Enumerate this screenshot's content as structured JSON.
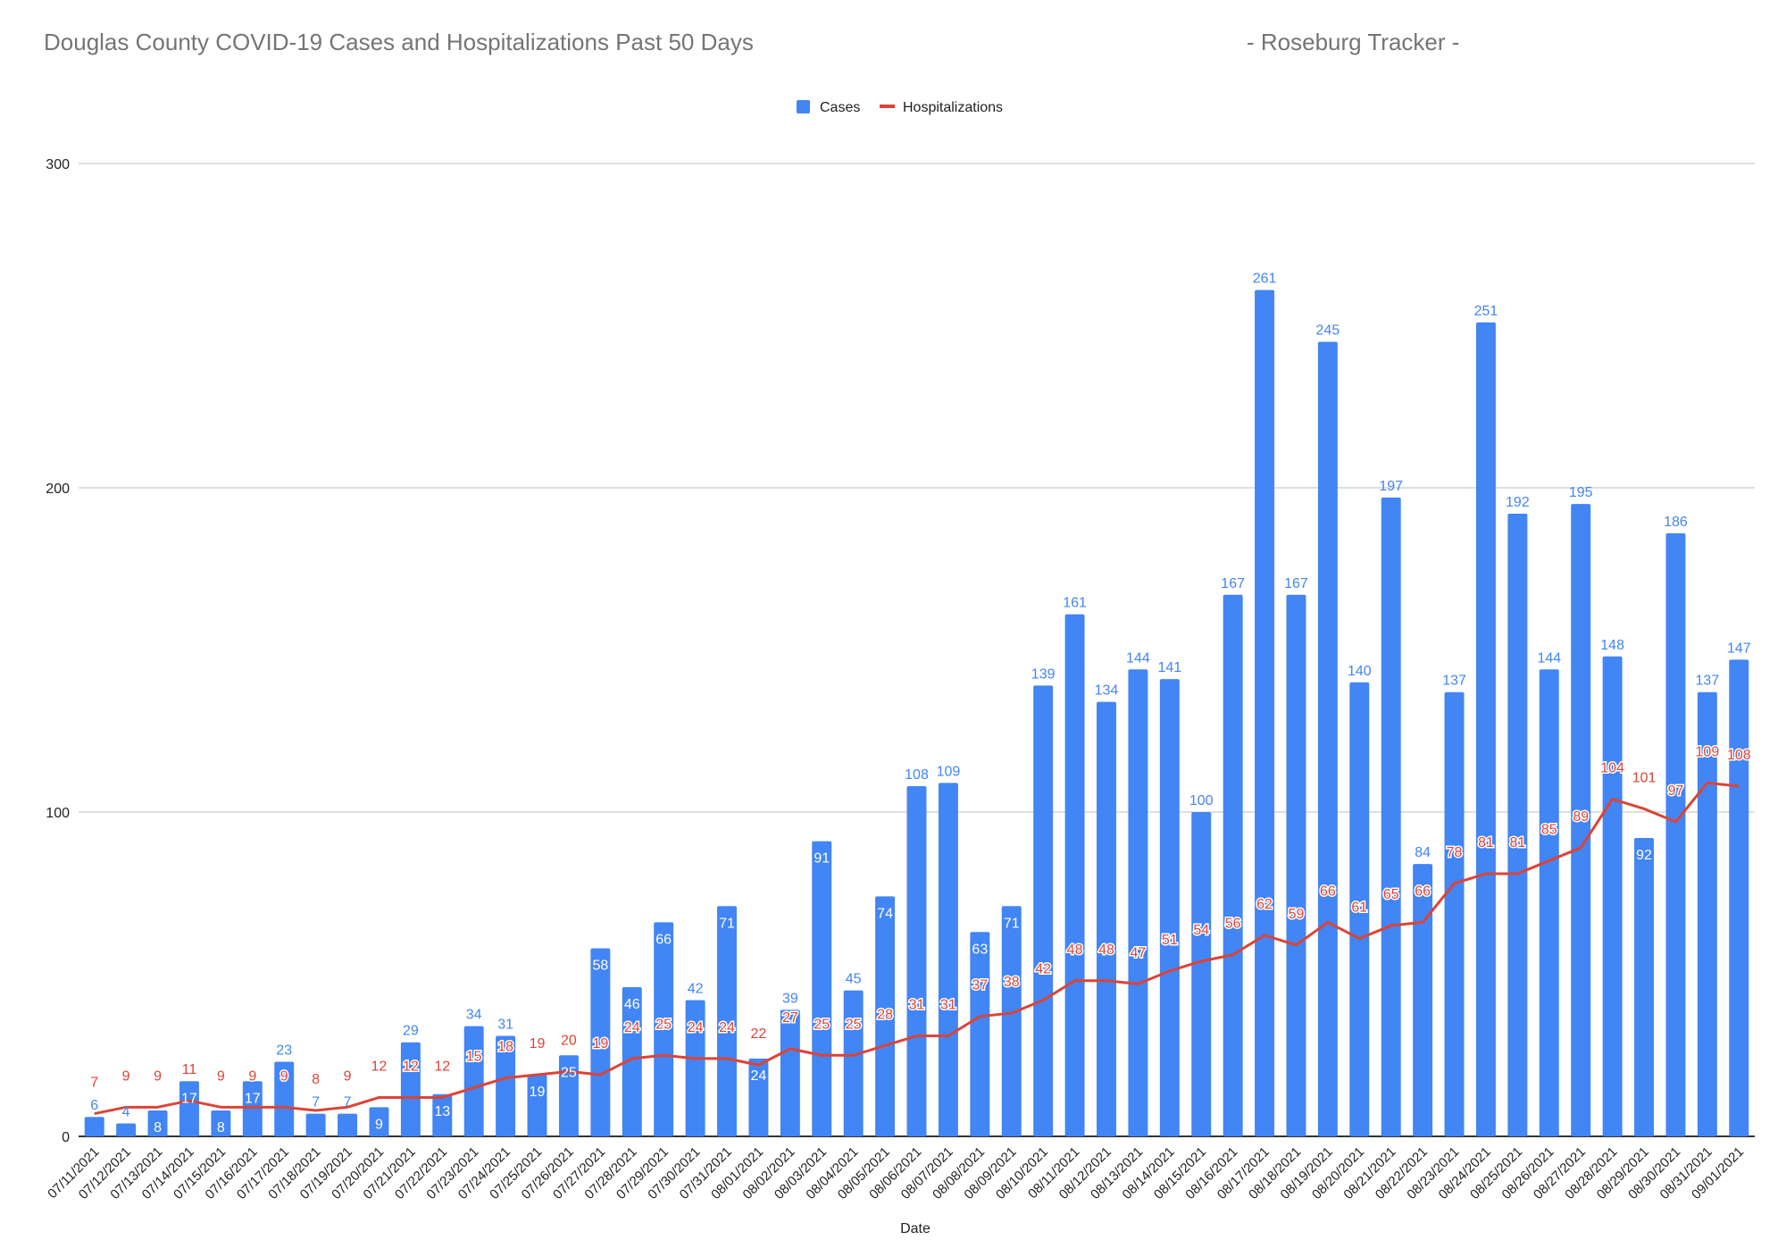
{
  "chart_data": {
    "type": "bar+line",
    "title": "Douglas County COVID-19 Cases and Hospitalizations Past 50 Days",
    "subtitle": "- Roseburg Tracker -",
    "xlabel": "Date",
    "ylabel": "",
    "ylim": [
      0,
      300
    ],
    "yticks": [
      0,
      100,
      200,
      300
    ],
    "grid": true,
    "legend_position": "top",
    "categories": [
      "07/11/2021",
      "07/12/2021",
      "07/13/2021",
      "07/14/2021",
      "07/15/2021",
      "07/16/2021",
      "07/17/2021",
      "07/18/2021",
      "07/19/2021",
      "07/20/2021",
      "07/21/2021",
      "07/22/2021",
      "07/23/2021",
      "07/24/2021",
      "07/25/2021",
      "07/26/2021",
      "07/27/2021",
      "07/28/2021",
      "07/29/2021",
      "07/30/2021",
      "07/31/2021",
      "08/01/2021",
      "08/02/2021",
      "08/03/2021",
      "08/04/2021",
      "08/05/2021",
      "08/06/2021",
      "08/07/2021",
      "08/08/2021",
      "08/09/2021",
      "08/10/2021",
      "08/11/2021",
      "08/12/2021",
      "08/13/2021",
      "08/14/2021",
      "08/15/2021",
      "08/16/2021",
      "08/17/2021",
      "08/18/2021",
      "08/19/2021",
      "08/20/2021",
      "08/21/2021",
      "08/22/2021",
      "08/23/2021",
      "08/24/2021",
      "08/25/2021",
      "08/26/2021",
      "08/27/2021",
      "08/28/2021",
      "08/29/2021",
      "08/30/2021",
      "08/31/2021",
      "09/01/2021"
    ],
    "series": [
      {
        "name": "Cases",
        "type": "bar",
        "color": "#4285f4",
        "values": [
          6,
          4,
          8,
          17,
          8,
          17,
          23,
          7,
          7,
          9,
          29,
          13,
          34,
          31,
          19,
          25,
          58,
          46,
          66,
          42,
          71,
          24,
          39,
          91,
          45,
          74,
          108,
          109,
          63,
          71,
          139,
          161,
          134,
          144,
          141,
          100,
          167,
          261,
          167,
          245,
          140,
          197,
          84,
          137,
          251,
          192,
          144,
          195,
          148,
          92,
          186,
          137,
          147
        ]
      },
      {
        "name": "Hospitalizations",
        "type": "line",
        "color": "#db4437",
        "values": [
          7,
          9,
          9,
          11,
          9,
          9,
          9,
          8,
          9,
          12,
          12,
          12,
          15,
          18,
          19,
          20,
          19,
          24,
          25,
          24,
          24,
          22,
          27,
          25,
          25,
          28,
          31,
          31,
          37,
          38,
          42,
          48,
          48,
          47,
          51,
          54,
          56,
          62,
          59,
          66,
          61,
          65,
          66,
          78,
          81,
          81,
          85,
          89,
          104,
          101,
          97,
          109,
          108
        ]
      }
    ]
  }
}
